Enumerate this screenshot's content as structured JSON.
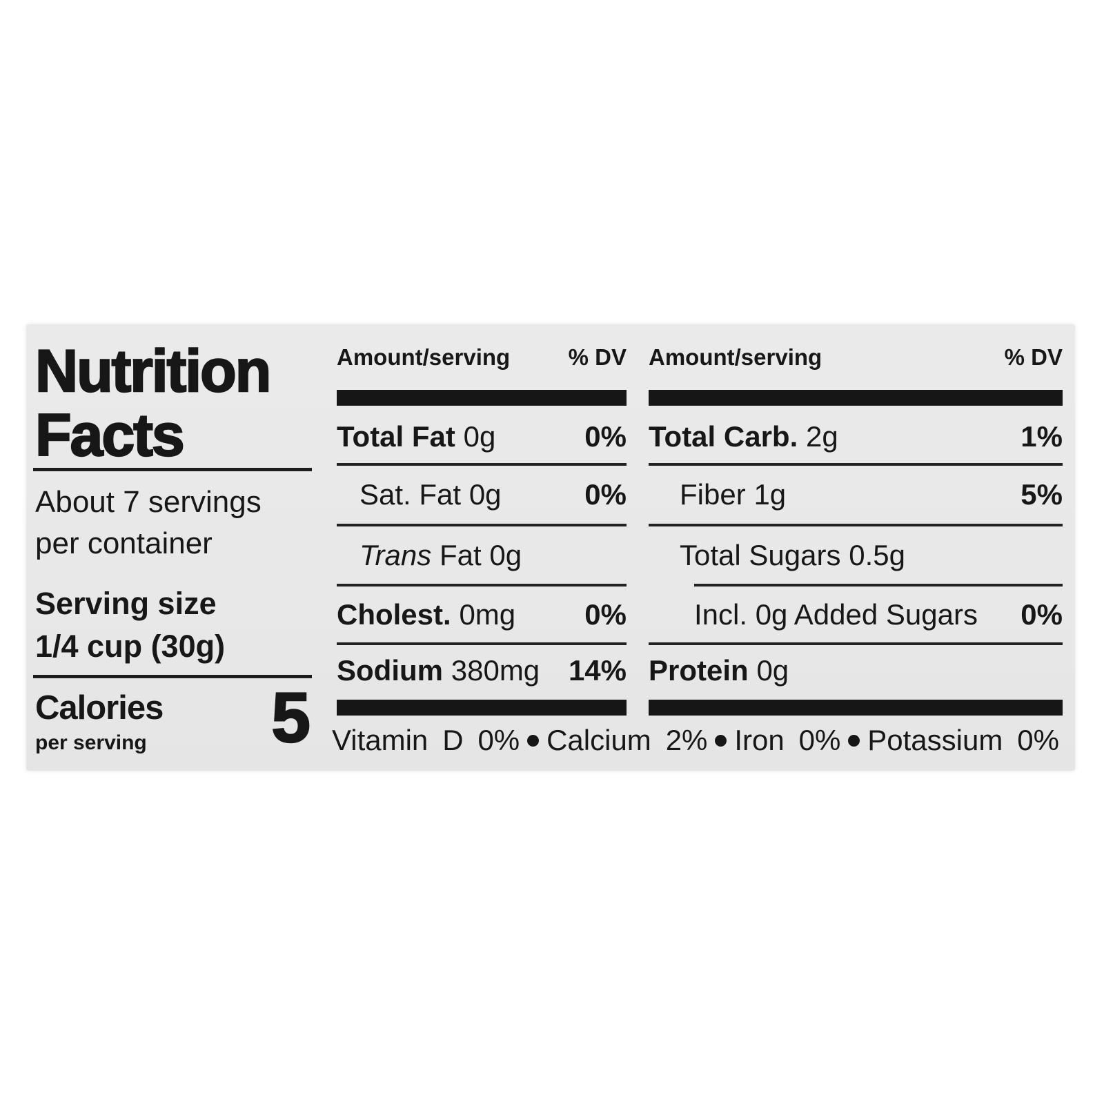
{
  "label": {
    "title_line1": "Nutrition",
    "title_line2": "Facts",
    "servings_line1": "About 7 servings",
    "servings_line2": "per container",
    "serving_size_label": "Serving size",
    "serving_size_value": "1/4 cup (30g)",
    "calories_label": "Calories",
    "calories_sublabel": "per serving",
    "calories_value": "5",
    "columns": [
      {
        "header_amount": "Amount/serving",
        "header_dv": "% DV",
        "rows": [
          {
            "name": "Total Fat",
            "value": "0g",
            "dv": "0%"
          },
          {
            "name": "Sat. Fat",
            "value": "0g",
            "dv": "0%"
          },
          {
            "name": "Trans",
            "value": "Fat 0g",
            "dv": ""
          },
          {
            "name": "Cholest.",
            "value": "0mg",
            "dv": "0%"
          },
          {
            "name": "Sodium",
            "value": "380mg",
            "dv": "14%"
          }
        ]
      },
      {
        "header_amount": "Amount/serving",
        "header_dv": "% DV",
        "rows": [
          {
            "name": "Total Carb.",
            "value": "2g",
            "dv": "1%"
          },
          {
            "name": "Fiber",
            "value": "1g",
            "dv": "5%"
          },
          {
            "name": "Total Sugars",
            "value": "0.5g",
            "dv": ""
          },
          {
            "name": "Incl. 0g Added Sugars",
            "value": "",
            "dv": "0%"
          },
          {
            "name": "Protein",
            "value": "0g",
            "dv": ""
          }
        ]
      }
    ],
    "footer_items": [
      "Vitamin D 0%",
      "Calcium 2%",
      "Iron 0%",
      "Potassium 0%"
    ],
    "colors": {
      "page_bg": "#ffffff",
      "label_bg": "#e9e9e9",
      "text": "#171717"
    }
  }
}
